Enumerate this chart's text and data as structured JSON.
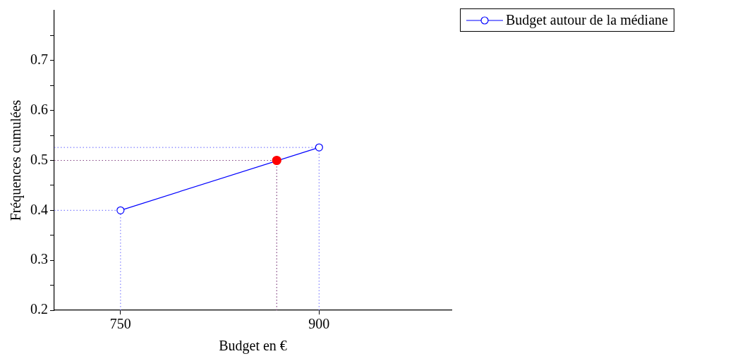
{
  "chart_data": {
    "type": "line",
    "xlabel": "Budget en €",
    "ylabel": "Fréquences cumulées",
    "xlim": [
      700,
      1000
    ],
    "xticks": [
      750,
      900
    ],
    "ylim": [
      0.2,
      0.8
    ],
    "yticks": [
      0.2,
      {
        "value": 0.25,
        "label": null
      },
      0.3,
      {
        "value": 0.35,
        "label": null
      },
      0.4,
      {
        "value": 0.45,
        "label": null
      },
      0.5,
      {
        "value": 0.55,
        "label": null
      },
      0.6,
      {
        "value": 0.65,
        "label": null
      },
      0.7,
      {
        "value": 0.75,
        "label": null
      }
    ],
    "grid": false,
    "legend": "top right",
    "marker": "circle",
    "series": [
      {
        "name": "Budget autour de la médiane",
        "color": "#0000ff",
        "x": [
          750,
          900
        ],
        "values": [
          0.4,
          0.526
        ]
      },
      {
        "type": "line",
        "color": "#8080ff",
        "line_style": "dotted",
        "marker": "none",
        "x": [
          700,
          750
        ],
        "values": [
          0.4,
          0.4
        ]
      },
      {
        "type": "line",
        "color": "#8080ff",
        "line_style": "dotted",
        "marker": "none",
        "x": [
          750,
          750
        ],
        "values": [
          0.2,
          0.4
        ]
      },
      {
        "type": "line",
        "color": "#8080ff",
        "line_style": "dotted",
        "marker": "none",
        "x": [
          700,
          900
        ],
        "values": [
          0.526,
          0.526
        ]
      },
      {
        "type": "line",
        "color": "#8080ff",
        "line_style": "dotted",
        "marker": "none",
        "x": [
          900,
          900
        ],
        "values": [
          0.2,
          0.526
        ]
      },
      {
        "type": "line",
        "color": "#804080",
        "line_style": "dotted",
        "marker": "none",
        "x": [
          700,
          868
        ],
        "values": [
          0.5,
          0.5
        ]
      },
      {
        "type": "line",
        "color": "#804080",
        "line_style": "dotted",
        "marker": "none",
        "x": [
          868,
          868
        ],
        "values": [
          0.2,
          0.5
        ]
      },
      {
        "type": "scatter",
        "color": "#ff0000",
        "x": [
          868
        ],
        "values": [
          0.5
        ]
      }
    ]
  }
}
